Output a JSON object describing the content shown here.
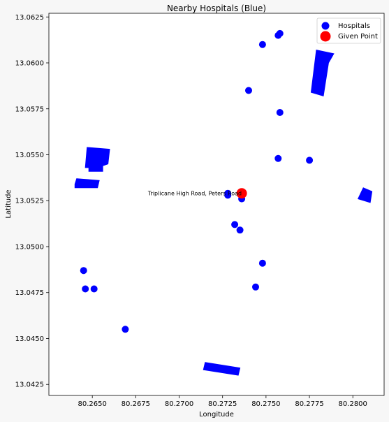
{
  "chart_data": {
    "type": "scatter",
    "title": "Nearby Hospitals (Blue)",
    "xlabel": "Longitude",
    "ylabel": "Latitude",
    "xlim": [
      80.2625,
      80.2818
    ],
    "ylim": [
      13.0419,
      13.0627
    ],
    "xticks": [
      80.265,
      80.2675,
      80.27,
      80.2725,
      80.275,
      80.2775,
      80.28
    ],
    "xtick_labels": [
      "80.2650",
      "80.2675",
      "80.2700",
      "80.2725",
      "80.2750",
      "80.2775",
      "80.2800"
    ],
    "yticks": [
      13.0425,
      13.045,
      13.0475,
      13.05,
      13.0525,
      13.055,
      13.0575,
      13.06,
      13.0625
    ],
    "ytick_labels": [
      "13.0425",
      "13.0450",
      "13.0475",
      "13.0500",
      "13.0525",
      "13.0550",
      "13.0575",
      "13.0600",
      "13.0625"
    ],
    "grid": false,
    "legend_position": "top-right",
    "series": [
      {
        "name": "Hospitals",
        "color": "#0000ff",
        "x": [
          80.2758,
          80.2757,
          80.2748,
          80.274,
          80.2758,
          80.2757,
          80.2775,
          80.2728,
          80.2728,
          80.2736,
          80.2732,
          80.2735,
          80.2748,
          80.2744,
          80.2645,
          80.2646,
          80.2651,
          80.2669
        ],
        "y": [
          13.0616,
          13.0615,
          13.061,
          13.0585,
          13.0573,
          13.0548,
          13.0547,
          13.0529,
          13.0528,
          13.0526,
          13.0512,
          13.0509,
          13.0491,
          13.0478,
          13.0487,
          13.0477,
          13.0477,
          13.0455
        ]
      },
      {
        "name": "Given Point",
        "color": "#ff0000",
        "x": [
          80.2736
        ],
        "y": [
          13.0529
        ]
      }
    ],
    "polygons": [
      {
        "color": "#0000ff",
        "points": [
          [
            80.2776,
            13.0584
          ],
          [
            80.2779,
            13.0607
          ],
          [
            80.2789,
            13.0605
          ],
          [
            80.2786,
            13.06
          ],
          [
            80.2783,
            13.0582
          ]
        ]
      },
      {
        "color": "#0000ff",
        "points": [
          [
            80.2647,
            13.0554
          ],
          [
            80.266,
            13.0553
          ],
          [
            80.2659,
            13.0545
          ],
          [
            80.2656,
            13.0544
          ],
          [
            80.2656,
            13.0541
          ],
          [
            80.2648,
            13.0541
          ],
          [
            80.2648,
            13.0543
          ],
          [
            80.2646,
            13.0543
          ]
        ]
      },
      {
        "color": "#0000ff",
        "points": [
          [
            80.2641,
            13.0537
          ],
          [
            80.2654,
            13.0536
          ],
          [
            80.2653,
            13.0532
          ],
          [
            80.264,
            13.0532
          ],
          [
            80.264,
            13.0534
          ]
        ]
      },
      {
        "color": "#0000ff",
        "points": [
          [
            80.2806,
            13.0532
          ],
          [
            80.2811,
            13.053
          ],
          [
            80.281,
            13.0524
          ],
          [
            80.2803,
            13.0526
          ]
        ]
      },
      {
        "color": "#0000ff",
        "points": [
          [
            80.2715,
            13.0437
          ],
          [
            80.2735,
            13.0434
          ],
          [
            80.2734,
            13.043
          ],
          [
            80.2714,
            13.0433
          ]
        ]
      }
    ],
    "annotations": [
      {
        "text": "Triplicane High Road, Peters Road",
        "x": 80.2736,
        "y": 13.0529
      }
    ]
  }
}
